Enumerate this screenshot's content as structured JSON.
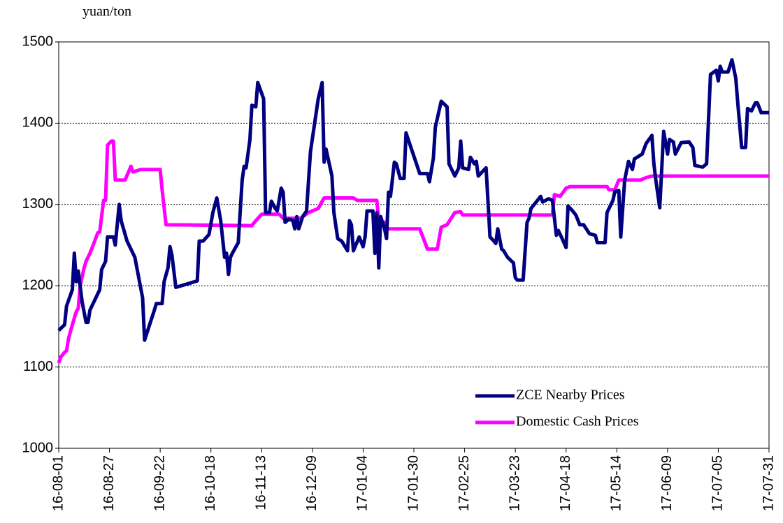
{
  "chart_data": {
    "type": "line",
    "y_unit": "yuan/ton",
    "ylim": [
      1000,
      1500
    ],
    "yticks": [
      1000,
      1100,
      1200,
      1300,
      1400,
      1500
    ],
    "grid": true,
    "xlim": [
      "16-08-01",
      "17-07-31"
    ],
    "xticks": [
      "16-08-01",
      "16-08-27",
      "16-09-22",
      "16-10-18",
      "16-11-13",
      "16-12-09",
      "17-01-04",
      "17-01-30",
      "17-02-25",
      "17-03-23",
      "17-04-18",
      "17-05-14",
      "17-06-09",
      "17-07-05",
      "17-07-31"
    ],
    "legend": "lower-right",
    "series": [
      {
        "name": "ZCE Nearby Prices",
        "color": "#000080",
        "x": [
          "16-08-01",
          "16-08-04",
          "16-08-05",
          "16-08-08",
          "16-08-09",
          "16-08-10",
          "16-08-11",
          "16-08-13",
          "16-08-15",
          "16-08-16",
          "16-08-17",
          "16-08-22",
          "16-08-23",
          "16-08-25",
          "16-08-26",
          "16-08-29",
          "16-08-30",
          "16-09-01",
          "16-09-02",
          "16-09-05",
          "16-09-08",
          "16-09-09",
          "16-09-13",
          "16-09-14",
          "16-09-19",
          "16-09-20",
          "16-09-23",
          "16-09-24",
          "16-09-26",
          "16-09-27",
          "16-09-28",
          "16-09-30",
          "16-10-07",
          "16-10-11",
          "16-10-12",
          "16-10-14",
          "16-10-17",
          "16-10-19",
          "16-10-21",
          "16-10-23",
          "16-10-25",
          "16-10-26",
          "16-10-27",
          "16-10-28",
          "16-10-29",
          "16-11-01",
          "16-11-03",
          "16-11-04",
          "16-11-05",
          "16-11-07",
          "16-11-08",
          "16-11-10",
          "16-11-11",
          "16-11-14",
          "16-11-15",
          "16-11-17",
          "16-11-18",
          "16-11-20",
          "16-11-21",
          "16-11-23",
          "16-11-24",
          "16-11-25",
          "16-11-27",
          "16-11-29",
          "16-11-30",
          "16-12-01",
          "16-12-02",
          "16-12-04",
          "16-12-06",
          "16-12-08",
          "16-12-12",
          "16-12-14",
          "16-12-15",
          "16-12-16",
          "16-12-19",
          "16-12-20",
          "16-12-22",
          "16-12-24",
          "16-12-27",
          "16-12-28",
          "16-12-29",
          "16-12-30",
          "17-01-02",
          "17-01-04",
          "17-01-05",
          "17-01-06",
          "17-01-09",
          "17-01-10",
          "17-01-11",
          "17-01-12",
          "17-01-13",
          "17-01-15",
          "17-01-16",
          "17-01-17",
          "17-01-18",
          "17-01-20",
          "17-01-21",
          "17-01-23",
          "17-01-25",
          "17-01-26",
          "17-02-02",
          "17-02-06",
          "17-02-07",
          "17-02-09",
          "17-02-10",
          "17-02-13",
          "17-02-16",
          "17-02-17",
          "17-02-20",
          "17-02-22",
          "17-02-23",
          "17-02-24",
          "17-02-27",
          "17-02-28",
          "17-03-02",
          "17-03-03",
          "17-03-04",
          "17-03-06",
          "17-03-08",
          "17-03-10",
          "17-03-12",
          "17-03-13",
          "17-03-14",
          "17-03-16",
          "17-03-17",
          "17-03-19",
          "17-03-22",
          "17-03-23",
          "17-03-24",
          "17-03-27",
          "17-03-29",
          "17-03-30",
          "17-03-31",
          "17-04-05",
          "17-04-06",
          "17-04-09",
          "17-04-11",
          "17-04-13",
          "17-04-14",
          "17-04-16",
          "17-04-18",
          "17-04-19",
          "17-04-21",
          "17-04-23",
          "17-04-25",
          "17-04-27",
          "17-04-30",
          "17-05-03",
          "17-05-04",
          "17-05-08",
          "17-05-09",
          "17-05-12",
          "17-05-13",
          "17-05-15",
          "17-05-16",
          "17-05-18",
          "17-05-20",
          "17-05-22",
          "17-05-23",
          "17-05-27",
          "17-05-29",
          "17-06-01",
          "17-06-02",
          "17-06-03",
          "17-06-05",
          "17-06-07",
          "17-06-09",
          "17-06-10",
          "17-06-12",
          "17-06-13",
          "17-06-16",
          "17-06-20",
          "17-06-22",
          "17-06-23",
          "17-06-27",
          "17-06-29",
          "17-07-01",
          "17-07-04",
          "17-07-05",
          "17-07-06",
          "17-07-07",
          "17-07-10",
          "17-07-12",
          "17-07-14",
          "17-07-15",
          "17-07-17",
          "17-07-19",
          "17-07-20",
          "17-07-22",
          "17-07-24",
          "17-07-25",
          "17-07-27",
          "17-07-31"
        ],
        "values": [
          1145,
          1152,
          1175,
          1195,
          1240,
          1205,
          1218,
          1180,
          1155,
          1155,
          1170,
          1195,
          1220,
          1230,
          1260,
          1260,
          1250,
          1300,
          1280,
          1255,
          1240,
          1235,
          1185,
          1133,
          1170,
          1178,
          1178,
          1205,
          1222,
          1248,
          1238,
          1198,
          1203,
          1206,
          1255,
          1255,
          1263,
          1290,
          1308,
          1280,
          1235,
          1240,
          1214,
          1235,
          1240,
          1253,
          1330,
          1347,
          1345,
          1380,
          1422,
          1420,
          1450,
          1430,
          1290,
          1290,
          1304,
          1295,
          1292,
          1320,
          1315,
          1278,
          1282,
          1280,
          1270,
          1285,
          1270,
          1285,
          1292,
          1365,
          1430,
          1450,
          1352,
          1368,
          1335,
          1290,
          1258,
          1255,
          1243,
          1280,
          1275,
          1243,
          1260,
          1248,
          1260,
          1292,
          1292,
          1240,
          1290,
          1222,
          1285,
          1270,
          1258,
          1315,
          1310,
          1352,
          1350,
          1332,
          1332,
          1388,
          1338,
          1338,
          1328,
          1357,
          1395,
          1427,
          1420,
          1350,
          1335,
          1345,
          1378,
          1345,
          1343,
          1358,
          1350,
          1353,
          1335,
          1340,
          1345,
          1260,
          1255,
          1252,
          1270,
          1245,
          1243,
          1235,
          1228,
          1210,
          1207,
          1207,
          1278,
          1283,
          1295,
          1310,
          1303,
          1307,
          1305,
          1262,
          1268,
          1258,
          1247,
          1298,
          1293,
          1287,
          1275,
          1275,
          1264,
          1262,
          1253,
          1253,
          1290,
          1305,
          1316,
          1317,
          1260,
          1330,
          1353,
          1343,
          1356,
          1362,
          1375,
          1385,
          1350,
          1330,
          1296,
          1390,
          1362,
          1380,
          1377,
          1362,
          1376,
          1377,
          1370,
          1348,
          1346,
          1350,
          1460,
          1465,
          1452,
          1470,
          1463,
          1463,
          1478,
          1455,
          1425,
          1370,
          1370,
          1418,
          1415,
          1425,
          1425,
          1413,
          1413
        ]
      },
      {
        "name": "Domestic Cash Prices",
        "color": "#ff00ff",
        "x": [
          "16-08-01",
          "16-08-02",
          "16-08-04",
          "16-08-05",
          "16-08-06",
          "16-08-08",
          "16-08-10",
          "16-08-11",
          "16-08-12",
          "16-08-14",
          "16-08-15",
          "16-08-17",
          "16-08-19",
          "16-08-21",
          "16-08-22",
          "16-08-24",
          "16-08-25",
          "16-08-26",
          "16-08-28",
          "16-08-29",
          "16-08-30",
          "16-09-04",
          "16-09-07",
          "16-09-08",
          "16-09-12",
          "16-09-22",
          "16-09-23",
          "16-09-25",
          "16-11-08",
          "16-11-10",
          "16-11-13",
          "16-11-22",
          "16-11-24",
          "16-12-03",
          "16-12-07",
          "16-12-12",
          "16-12-15",
          "16-12-30",
          "17-01-01",
          "17-01-11",
          "17-01-12",
          "17-01-15",
          "17-01-16",
          "17-02-02",
          "17-02-06",
          "17-02-11",
          "17-02-13",
          "17-02-16",
          "17-02-20",
          "17-02-23",
          "17-02-24",
          "17-04-11",
          "17-04-12",
          "17-04-15",
          "17-04-18",
          "17-04-20",
          "17-05-09",
          "17-05-10",
          "17-05-13",
          "17-05-15",
          "17-05-26",
          "17-05-29",
          "17-06-01",
          "17-07-31"
        ],
        "values": [
          1105,
          1112,
          1118,
          1120,
          1135,
          1152,
          1168,
          1172,
          1200,
          1222,
          1230,
          1240,
          1252,
          1265,
          1266,
          1305,
          1305,
          1373,
          1378,
          1378,
          1330,
          1330,
          1347,
          1340,
          1343,
          1343,
          1318,
          1275,
          1274,
          1280,
          1288,
          1288,
          1283,
          1283,
          1290,
          1295,
          1308,
          1308,
          1305,
          1305,
          1280,
          1278,
          1270,
          1270,
          1245,
          1245,
          1272,
          1275,
          1290,
          1291,
          1287,
          1287,
          1312,
          1310,
          1320,
          1322,
          1322,
          1318,
          1318,
          1330,
          1330,
          1333,
          1335,
          1335
        ]
      }
    ]
  }
}
